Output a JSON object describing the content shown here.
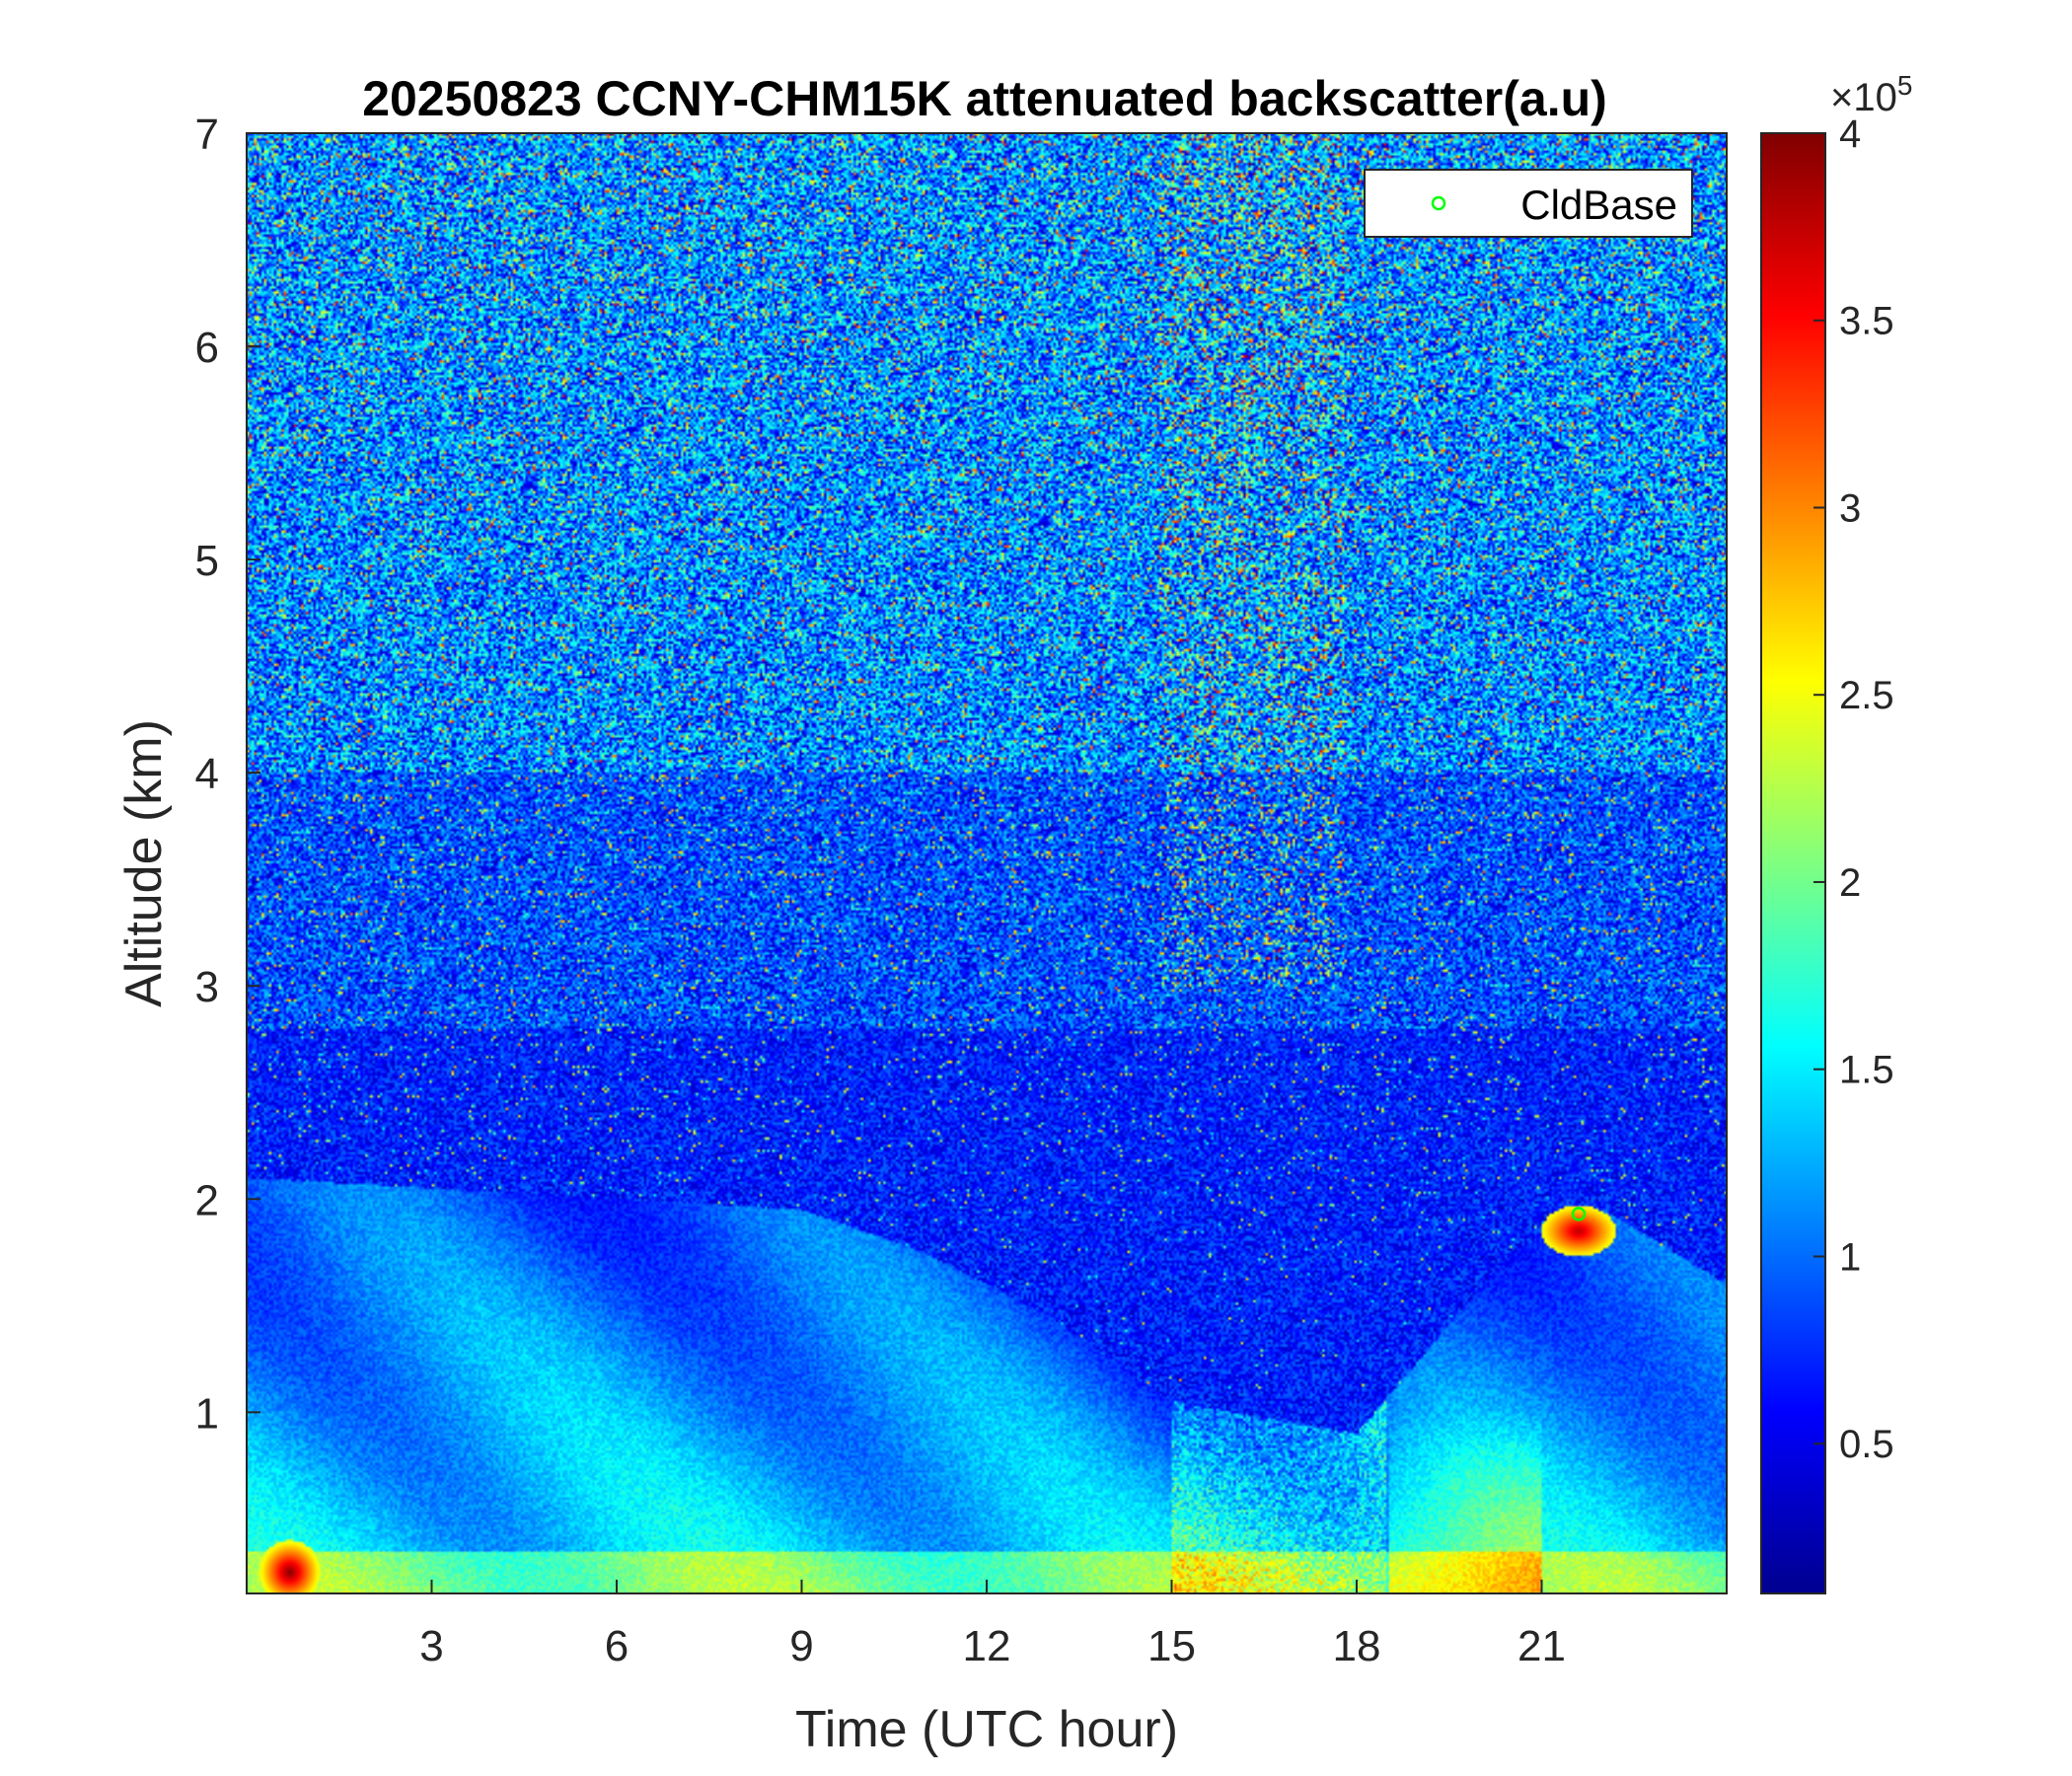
{
  "chart_data": {
    "type": "heatmap",
    "title": "20250823 CCNY-CHM15K attenuated backscatter(a.u)",
    "xlabel": "Time (UTC hour)",
    "ylabel": "Altitude (km)",
    "xlim": [
      0,
      24
    ],
    "ylim": [
      0.15,
      7
    ],
    "x_ticks": [
      3,
      6,
      9,
      12,
      15,
      18,
      21
    ],
    "y_ticks": [
      1,
      2,
      3,
      4,
      5,
      6,
      7
    ],
    "colorbar": {
      "colormap": "jet",
      "range": [
        0.1,
        4
      ],
      "ticks": [
        0.5,
        1,
        1.5,
        2,
        2.5,
        3,
        3.5,
        4
      ],
      "exponent_label": "×10",
      "exponent_power": "5"
    },
    "legend": {
      "placement": "top-right",
      "entries": [
        {
          "label": "CldBase",
          "marker": "circle",
          "color": "#00ff00"
        }
      ]
    },
    "cloud_base_points": [
      {
        "x": 21.6,
        "y": 1.93
      }
    ],
    "field_features": [
      {
        "name": "boundary-layer top",
        "x": [
          0,
          3,
          6,
          9,
          11,
          13,
          15,
          18,
          20.5,
          22,
          24
        ],
        "y": [
          2.1,
          2.05,
          2.0,
          1.95,
          1.75,
          1.45,
          1.05,
          0.9,
          1.75,
          1.95,
          1.6
        ]
      },
      {
        "name": "surface hotspot",
        "x": 0.7,
        "y": 0.25,
        "level": 4.0
      },
      {
        "name": "cloud core",
        "x": 21.6,
        "y": 1.85,
        "level": 3.8
      },
      {
        "name": "noise-band elevated signal",
        "x": 16.3,
        "y_range": [
          3,
          7
        ],
        "level": 3.0
      }
    ]
  }
}
